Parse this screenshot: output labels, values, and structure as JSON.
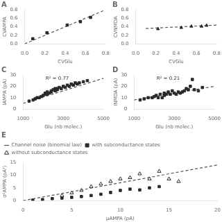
{
  "chart_data": [
    {
      "type": "scatter",
      "title": "A",
      "xlabel": "CVGlu",
      "ylabel": "CVAMPA",
      "xlim": [
        0,
        0.8
      ],
      "ylim": [
        0,
        0.8
      ],
      "xticks": [
        {
          "value": 0,
          "label": "0.0"
        },
        0.2,
        0.4,
        0.6,
        0.8
      ],
      "yticks": [
        {
          "value": 0,
          "label": "0.0"
        },
        0.2,
        0.4,
        0.6,
        0.8
      ],
      "grid": false,
      "series": [
        {
          "type": "scatter",
          "marker": "square",
          "color": "#2a2a2a",
          "x": [
            0.08,
            0.22,
            0.42,
            0.55,
            0.65
          ],
          "values": [
            0.12,
            0.26,
            0.44,
            0.52,
            0.62
          ]
        },
        {
          "type": "line",
          "line_style": "dashed",
          "color": "#555555",
          "x": [
            0,
            0.78
          ],
          "values": [
            0,
            0.78
          ]
        }
      ]
    },
    {
      "type": "scatter",
      "title": "B",
      "xlabel": "CVGlu",
      "ylabel": "CVNMDA",
      "xlim": [
        0,
        0.8
      ],
      "ylim": [
        0,
        0.8
      ],
      "xticks": [
        {
          "value": 0,
          "label": "0.0"
        },
        0.2,
        0.4,
        0.6,
        0.8
      ],
      "yticks": [
        {
          "value": 0,
          "label": "0.0"
        },
        0.2,
        0.4,
        0.6,
        0.8
      ],
      "grid": false,
      "series": [
        {
          "type": "scatter",
          "marker": "triangle",
          "color": "#2a2a2a",
          "x": [
            0.22,
            0.45,
            0.55,
            0.65,
            0.7
          ],
          "values": [
            0.35,
            0.38,
            0.41,
            0.41,
            0.43
          ]
        },
        {
          "type": "line",
          "line_style": "dashed",
          "color": "#555555",
          "x": [
            0.1,
            0.8
          ],
          "values": [
            0.36,
            0.44
          ]
        }
      ]
    },
    {
      "type": "scatter",
      "title": "C",
      "annotation": "R² = 0.77",
      "xlabel": "Glu (nb molec.)",
      "ylabel": "IAMPA (pA)",
      "xlim": [
        1000,
        5000
      ],
      "ylim": [
        0,
        30
      ],
      "xticks": [
        1000,
        3000,
        5000
      ],
      "yticks": [
        0,
        10,
        20,
        30
      ],
      "grid": false,
      "series": [
        {
          "type": "scatter",
          "marker": "square",
          "color": "#2a2a2a",
          "x": [
            1300,
            1500,
            1600,
            1700,
            1800,
            1900,
            2000,
            2100,
            2100,
            2200,
            2200,
            2300,
            2400,
            2400,
            2500,
            2600,
            2600,
            2700,
            2700,
            2800,
            2900,
            3000,
            3100,
            3200,
            3300,
            3400,
            3500,
            3600,
            3700,
            3800,
            4000,
            4200
          ],
          "values": [
            7,
            8,
            9,
            10,
            10,
            11,
            12,
            13,
            14,
            13,
            15,
            14,
            16,
            15,
            17,
            16,
            18,
            17,
            18,
            19,
            18,
            20,
            19,
            21,
            20,
            22,
            21,
            23,
            22,
            23,
            24,
            25
          ]
        },
        {
          "type": "line",
          "line_style": "dashed",
          "color": "#555555",
          "x": [
            1000,
            5000
          ],
          "values": [
            5,
            27
          ]
        }
      ]
    },
    {
      "type": "scatter",
      "title": "D",
      "annotation": "R² = 0.21",
      "xlabel": "Glu (nb molec.)",
      "ylabel": "INMDA (pA)",
      "xlim": [
        1000,
        5000
      ],
      "ylim": [
        0,
        30
      ],
      "xticks": [
        1000,
        3000,
        5000
      ],
      "yticks": [
        0,
        10,
        20,
        30
      ],
      "grid": false,
      "series": [
        {
          "type": "scatter",
          "marker": "square",
          "color": "#2a2a2a",
          "x": [
            1300,
            1500,
            1700,
            1900,
            2000,
            2100,
            2200,
            2300,
            2400,
            2500,
            2500,
            2600,
            2700,
            2800,
            2900,
            3000,
            3100,
            3200,
            3300,
            3400,
            3500,
            3600,
            3700,
            3800,
            3900,
            4000,
            4200,
            4400
          ],
          "values": [
            8,
            9,
            10,
            10,
            11,
            12,
            10,
            13,
            10,
            12,
            14,
            13,
            15,
            13,
            16,
            14,
            13,
            15,
            14,
            15,
            16,
            18,
            17,
            20,
            26,
            17,
            16,
            19
          ]
        },
        {
          "type": "line",
          "line_style": "dashed",
          "color": "#555555",
          "x": [
            1000,
            5000
          ],
          "values": [
            8,
            20
          ]
        }
      ]
    },
    {
      "type": "scatter",
      "title": "E",
      "xlabel": "μAMPA (pA)",
      "ylabel": "σ²AMPA (pA²)",
      "xlim": [
        0,
        20
      ],
      "ylim": [
        0,
        15
      ],
      "xticks": [
        0,
        5,
        10,
        15,
        20
      ],
      "yticks": [
        0,
        5,
        10,
        15
      ],
      "grid": false,
      "legend": "upper left",
      "series": [
        {
          "name": "Channel noise (binomial law)",
          "type": "line",
          "line_style": "dashed",
          "color": "#555555",
          "x": [
            0,
            20
          ],
          "values": [
            0,
            14
          ]
        },
        {
          "name": "with subconductance states",
          "type": "scatter",
          "marker": "square",
          "color": "#2a2a2a",
          "x": [
            1,
            2,
            3,
            4,
            5,
            6,
            7,
            8,
            9,
            10,
            11,
            12,
            13,
            14
          ],
          "values": [
            0.2,
            0.4,
            0.8,
            1.0,
            1.3,
            1.6,
            2.0,
            2.5,
            3.2,
            4.0,
            4.5,
            4.2,
            5.0,
            5.5
          ]
        },
        {
          "name": "without subconductance states",
          "type": "scatter",
          "marker": "open_triangle",
          "color": "#2a2a2a",
          "x": [
            4,
            5,
            6,
            7,
            8,
            9,
            10,
            11,
            12,
            13,
            14,
            15,
            16
          ],
          "values": [
            2.0,
            3.0,
            4.0,
            5.5,
            6.5,
            7.5,
            8.5,
            9.0,
            10.5,
            8.5,
            11.5,
            8.5,
            7.5
          ]
        }
      ]
    }
  ]
}
